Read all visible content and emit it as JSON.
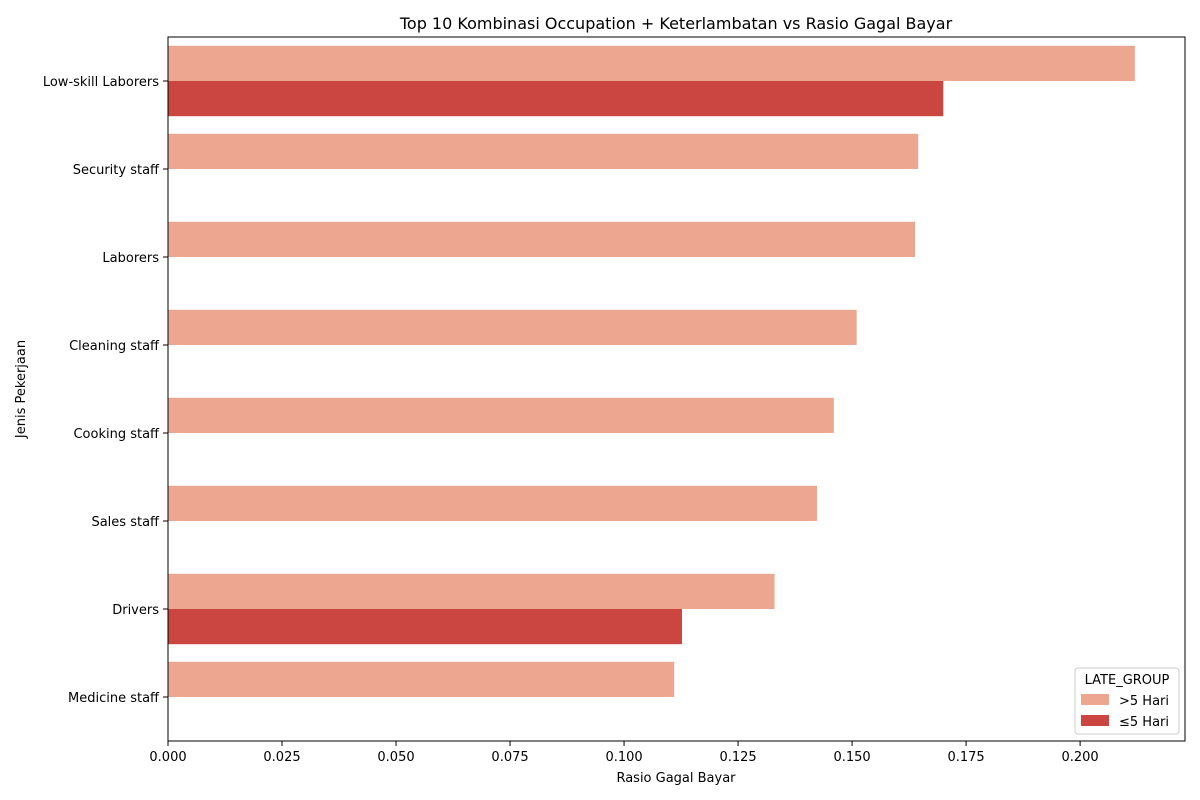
{
  "chart_data": {
    "type": "bar",
    "orientation": "horizontal",
    "title": "Top 10 Kombinasi Occupation + Keterlambatan vs Rasio Gagal Bayar",
    "xlabel": "Rasio Gagal Bayar",
    "ylabel": "Jenis Pekerjaan",
    "categories": [
      "Low-skill Laborers",
      "Security staff",
      "Laborers",
      "Cleaning staff",
      "Cooking staff",
      "Sales staff",
      "Drivers",
      "Medicine staff"
    ],
    "series": [
      {
        "name": ">5 Hari",
        "color": "#eda690",
        "values": [
          0.212,
          0.1645,
          0.1638,
          0.151,
          0.146,
          0.1423,
          0.133,
          0.111
        ]
      },
      {
        "name": "≤5 Hari",
        "color": "#cb4541",
        "values": [
          0.17,
          null,
          null,
          null,
          null,
          null,
          0.1127,
          null
        ]
      }
    ],
    "xlim": [
      0,
      0.223
    ],
    "xticks": [
      "0.000",
      "0.025",
      "0.050",
      "0.075",
      "0.100",
      "0.125",
      "0.150",
      "0.175",
      "0.200"
    ],
    "legend": {
      "title": "LATE_GROUP",
      "position": "lower-right"
    },
    "grid": false
  }
}
